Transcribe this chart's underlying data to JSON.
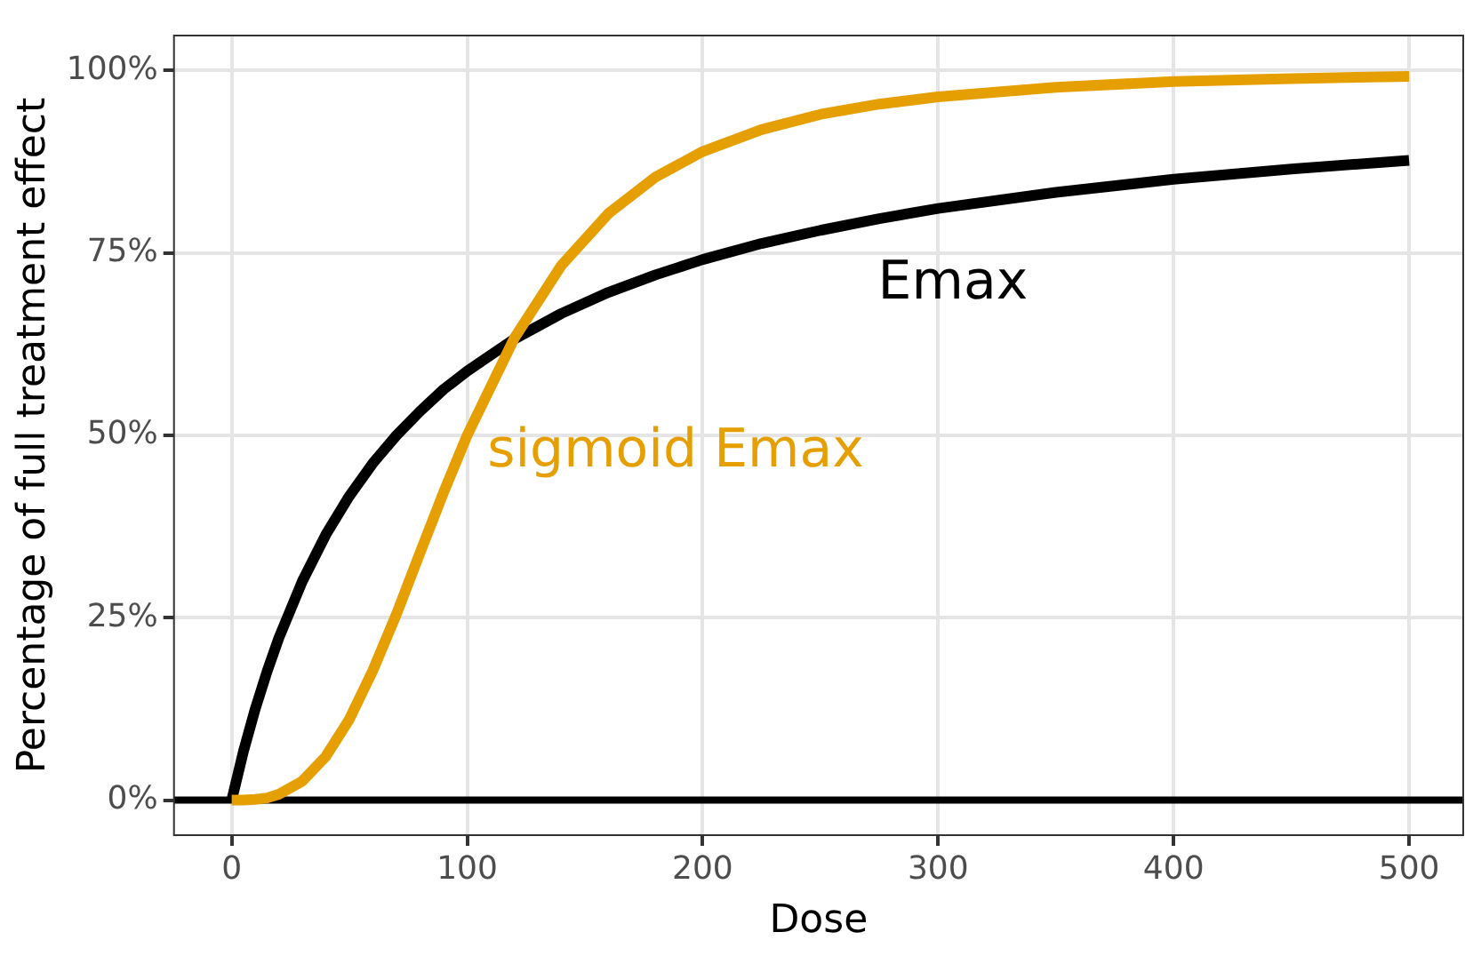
{
  "chart_data": {
    "type": "line",
    "xlabel": "Dose",
    "ylabel": "Percentage of full treatment effect",
    "x": [
      0,
      5,
      10,
      15,
      20,
      30,
      40,
      50,
      60,
      70,
      80,
      90,
      100,
      120,
      140,
      160,
      180,
      200,
      225,
      250,
      275,
      300,
      350,
      400,
      450,
      500
    ],
    "series": [
      {
        "name": "Emax",
        "color": "#000000",
        "values": [
          0,
          6.7,
          12.5,
          17.6,
          22.2,
          30,
          36.4,
          41.7,
          46.2,
          50,
          53.3,
          56.3,
          58.8,
          63.2,
          66.7,
          69.6,
          72,
          74.1,
          76.3,
          78.1,
          79.7,
          81.1,
          83.3,
          85.1,
          86.5,
          87.7
        ]
      },
      {
        "name": "sigmoid Emax",
        "color": "#e69f00",
        "values": [
          0,
          0,
          0.1,
          0.3,
          0.8,
          2.6,
          6,
          11.1,
          17.8,
          25.5,
          33.9,
          42.2,
          50,
          63.3,
          73.3,
          80.4,
          85.4,
          88.9,
          91.9,
          94,
          95.4,
          96.4,
          97.7,
          98.5,
          98.9,
          99.2
        ]
      }
    ],
    "xlim": [
      -24.5,
      523
    ],
    "xticks": [
      0,
      100,
      200,
      300,
      400,
      500
    ],
    "ylim": [
      -4.8,
      104.8
    ],
    "yticks": [
      {
        "value": 0,
        "label": "0%"
      },
      {
        "value": 25,
        "label": "25%"
      },
      {
        "value": 50,
        "label": "50%"
      },
      {
        "value": 75,
        "label": "75%"
      },
      {
        "value": 100,
        "label": "100%"
      }
    ],
    "ref_lines": [
      {
        "axis": "y",
        "value": 0,
        "color": "#000000"
      }
    ],
    "grid": true,
    "legend": false,
    "marker": "none",
    "line_style": "solid"
  }
}
